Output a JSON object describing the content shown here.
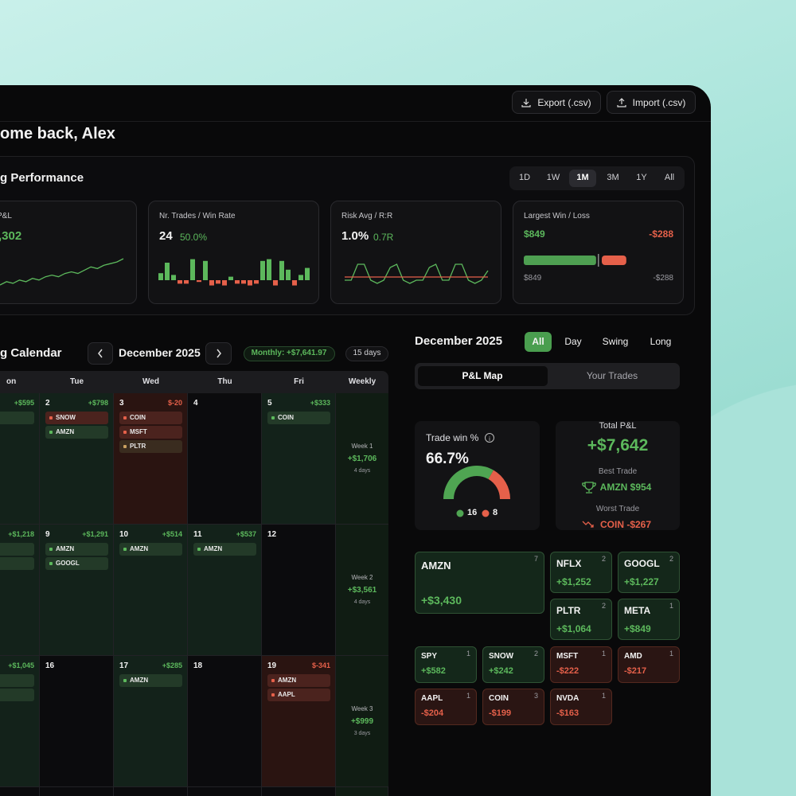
{
  "header": {
    "export": "Export (.csv)",
    "import": "Import (.csv)",
    "greeting": "ome back, Alex"
  },
  "performance": {
    "title": "g Performance",
    "ranges": [
      "1D",
      "1W",
      "1M",
      "3M",
      "1Y",
      "All"
    ],
    "active_range": "1M",
    "cards": [
      {
        "label": "P&L",
        "value": ",302",
        "spark": [
          0,
          2,
          1,
          3,
          2,
          4,
          3,
          5,
          6,
          5,
          7,
          8,
          7,
          9,
          11,
          10,
          12,
          13,
          14,
          16
        ]
      },
      {
        "label": "Nr. Trades / Win Rate",
        "value": 24,
        "sub": "50.0%",
        "bars": [
          4,
          10,
          3,
          -2,
          -2,
          12,
          -1,
          11,
          -3,
          -2,
          -3,
          2,
          -2,
          -2,
          -3,
          -2,
          11,
          12,
          -3,
          11,
          6,
          -3,
          3,
          7
        ]
      },
      {
        "label": "Risk Avg / R:R",
        "value": "1.0%",
        "sub": "0.7R",
        "line": [
          0,
          0,
          5,
          5,
          0,
          -1,
          0,
          4,
          5,
          0,
          -1,
          0,
          0,
          4,
          5,
          0,
          0,
          5,
          5,
          0,
          -1,
          0,
          3
        ],
        "reference": 1
      },
      {
        "label": "Largest Win / Loss",
        "win": {
          "value": 849,
          "label": "$849"
        },
        "loss": {
          "value": -288,
          "label": "-$288"
        }
      }
    ]
  },
  "calendar": {
    "title": "g Calendar",
    "month": "December 2025",
    "monthly": "Monthly: +$7,641.97",
    "days": "15 days",
    "columns": [
      "on",
      "Tue",
      "Wed",
      "Thu",
      "Fri",
      "Weekly"
    ],
    "weeks": [
      {
        "cells": [
          {
            "pnl": "+$595",
            "status": "win",
            "trades": [
              {
                "ticker": null,
                "result": "win"
              }
            ]
          },
          {
            "day": 2,
            "pnl": "+$798",
            "status": "win",
            "trades": [
              {
                "ticker": "SNOW",
                "result": "loss"
              },
              {
                "ticker": "AMZN",
                "result": "win"
              }
            ]
          },
          {
            "day": 3,
            "pnl": "$-20",
            "status": "loss",
            "trades": [
              {
                "ticker": "COIN",
                "result": "loss"
              },
              {
                "ticker": "MSFT",
                "result": "loss"
              },
              {
                "ticker": "PLTR",
                "result": "even"
              }
            ]
          },
          {
            "day": 4
          },
          {
            "day": 5,
            "pnl": "+$333",
            "status": "win",
            "trades": [
              {
                "ticker": "COIN",
                "result": "win"
              }
            ]
          }
        ],
        "weekly": {
          "label": "Week 1",
          "pnl": "+$1,706",
          "days": "4 days"
        }
      },
      {
        "cells": [
          {
            "pnl": "+$1,218",
            "status": "win",
            "trades": [
              {
                "ticker": "GL",
                "result": "win"
              },
              {
                "ticker": null,
                "result": "win"
              }
            ]
          },
          {
            "day": 9,
            "pnl": "+$1,291",
            "status": "win",
            "trades": [
              {
                "ticker": "AMZN",
                "result": "win"
              },
              {
                "ticker": "GOOGL",
                "result": "win"
              }
            ]
          },
          {
            "day": 10,
            "pnl": "+$514",
            "status": "win",
            "trades": [
              {
                "ticker": "AMZN",
                "result": "win"
              }
            ]
          },
          {
            "day": 11,
            "pnl": "+$537",
            "status": "win",
            "trades": [
              {
                "ticker": "AMZN",
                "result": "win"
              }
            ]
          },
          {
            "day": 12
          }
        ],
        "weekly": {
          "label": "Week 2",
          "pnl": "+$3,561",
          "days": "4 days"
        }
      },
      {
        "cells": [
          {
            "pnl": "+$1,045",
            "status": "win",
            "trades": [
              {
                "ticker": "V",
                "result": "win"
              },
              {
                "ticker": null,
                "result": "win"
              }
            ]
          },
          {
            "day": 16
          },
          {
            "day": 17,
            "pnl": "+$285",
            "status": "win",
            "trades": [
              {
                "ticker": "AMZN",
                "result": "win"
              }
            ]
          },
          {
            "day": 18
          },
          {
            "day": 19,
            "pnl": "$-341",
            "status": "loss",
            "trades": [
              {
                "ticker": "AMZN",
                "result": "loss"
              },
              {
                "ticker": "AAPL",
                "result": "loss"
              }
            ]
          }
        ],
        "weekly": {
          "label": "Week 3",
          "pnl": "+$999",
          "days": "3 days"
        }
      }
    ]
  },
  "summary": {
    "month": "December 2025",
    "filters": [
      "All",
      "Day",
      "Swing",
      "Long"
    ],
    "active_filter": "All",
    "tabs": [
      "P&L Map",
      "Your Trades"
    ],
    "active_tab": "P&L Map",
    "win_card": {
      "label": "Trade win %",
      "value": "66.7%",
      "wins": 16,
      "losses": 8
    },
    "total_card": {
      "label": "Total P&L",
      "value": "+$7,642",
      "best_label": "Best Trade",
      "best": "AMZN $954",
      "worst_label": "Worst Trade",
      "worst": "COIN -$267"
    },
    "tiles": [
      {
        "ticker": "AMZN",
        "count": 7,
        "pnl": "+$3,430"
      },
      {
        "ticker": "NFLX",
        "count": 2,
        "pnl": "+$1,252"
      },
      {
        "ticker": "GOOGL",
        "count": 2,
        "pnl": "+$1,227"
      },
      {
        "ticker": "PLTR",
        "count": 2,
        "pnl": "+$1,064"
      },
      {
        "ticker": "META",
        "count": 1,
        "pnl": "+$849"
      },
      {
        "ticker": "SPY",
        "count": 1,
        "pnl": "+$582"
      },
      {
        "ticker": "SNOW",
        "count": 2,
        "pnl": "+$242"
      },
      {
        "ticker": "MSFT",
        "count": 1,
        "pnl": "-$222"
      },
      {
        "ticker": "AMD",
        "count": 1,
        "pnl": "-$217"
      },
      {
        "ticker": "AAPL",
        "count": 1,
        "pnl": "-$204"
      },
      {
        "ticker": "COIN",
        "count": 3,
        "pnl": "-$199"
      },
      {
        "ticker": "NVDA",
        "count": 1,
        "pnl": "-$163"
      }
    ]
  }
}
